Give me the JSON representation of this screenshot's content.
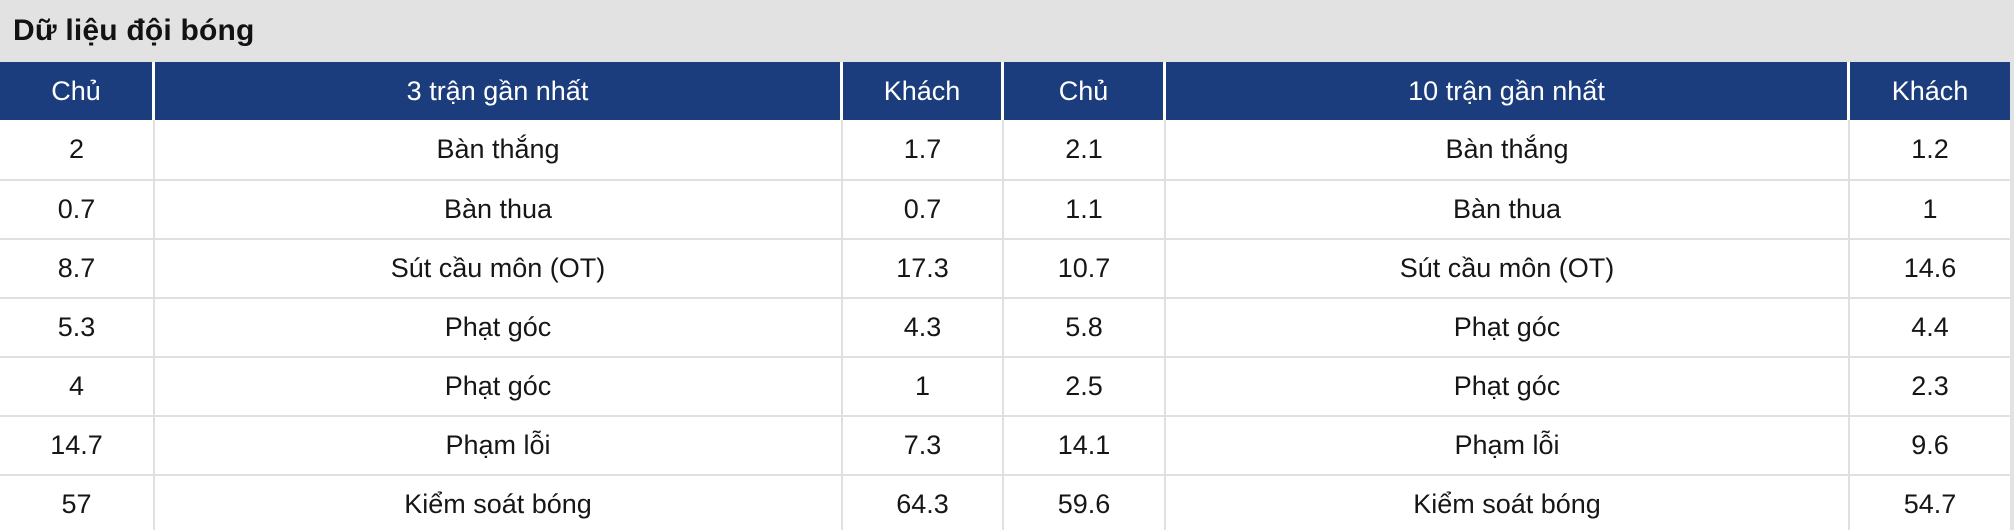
{
  "title": "Dữ liệu đội bóng",
  "table": {
    "columns": [
      "Chủ",
      "3 trận gần nhất",
      "Khách",
      "Chủ",
      "10 trận gần nhất",
      "Khách"
    ],
    "rows": [
      [
        "2",
        "Bàn thắng",
        "1.7",
        "2.1",
        "Bàn thắng",
        "1.2"
      ],
      [
        "0.7",
        "Bàn thua",
        "0.7",
        "1.1",
        "Bàn thua",
        "1"
      ],
      [
        "8.7",
        "Sút cầu môn (OT)",
        "17.3",
        "10.7",
        "Sút cầu môn (OT)",
        "14.6"
      ],
      [
        "5.3",
        "Phạt góc",
        "4.3",
        "5.8",
        "Phạt góc",
        "4.4"
      ],
      [
        "4",
        "Phạt góc",
        "1",
        "2.5",
        "Phạt góc",
        "2.3"
      ],
      [
        "14.7",
        "Phạm lỗi",
        "7.3",
        "14.1",
        "Phạm lỗi",
        "9.6"
      ],
      [
        "57",
        "Kiểm soát bóng",
        "64.3",
        "59.6",
        "Kiểm soát bóng",
        "54.7"
      ]
    ]
  },
  "colors": {
    "header_bg": "#1c3d7d",
    "header_text": "#ffffff",
    "title_bar_bg": "#e2e2e2",
    "body_text": "#161616",
    "grid_line": "#e0e0e0"
  }
}
